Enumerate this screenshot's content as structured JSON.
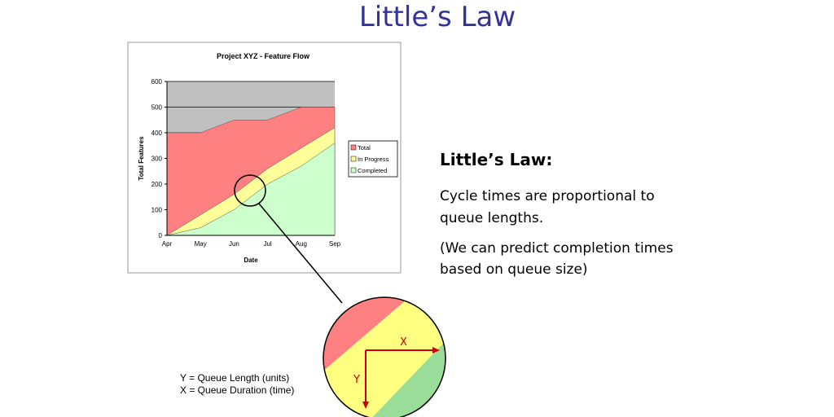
{
  "slide": {
    "title": "Little’s Law",
    "heading": "Little’s Law:",
    "lines": [
      "Cycle times are proportional to",
      "queue lengths.",
      "(We can predict completion times",
      "based on queue size)"
    ]
  },
  "zoom": {
    "x_label": "X",
    "y_label": "Y",
    "notes": [
      "Y = Queue Length (units)",
      "X = Queue Duration (time)"
    ]
  },
  "chart_data": {
    "type": "area",
    "title": "Project XYZ - Feature Flow",
    "x_label": "Date",
    "y_label": "Total Features",
    "categories": [
      "Apr",
      "May",
      "Jun",
      "Jul",
      "Aug",
      "Sep"
    ],
    "series": [
      {
        "name": "Total",
        "color": "#ff8080",
        "values": [
          400,
          400,
          450,
          450,
          500,
          500
        ]
      },
      {
        "name": "In Progress",
        "color": "#ffff99",
        "values": [
          0,
          80,
          160,
          260,
          340,
          420
        ]
      },
      {
        "name": "Completed",
        "color": "#ccffcc",
        "values": [
          0,
          30,
          100,
          200,
          270,
          360
        ]
      }
    ],
    "ylim": [
      0,
      600
    ],
    "yticks": [
      0,
      100,
      200,
      300,
      400,
      500,
      600
    ],
    "grid": true,
    "plot_background": "#c0c0c0",
    "legend": "right"
  }
}
